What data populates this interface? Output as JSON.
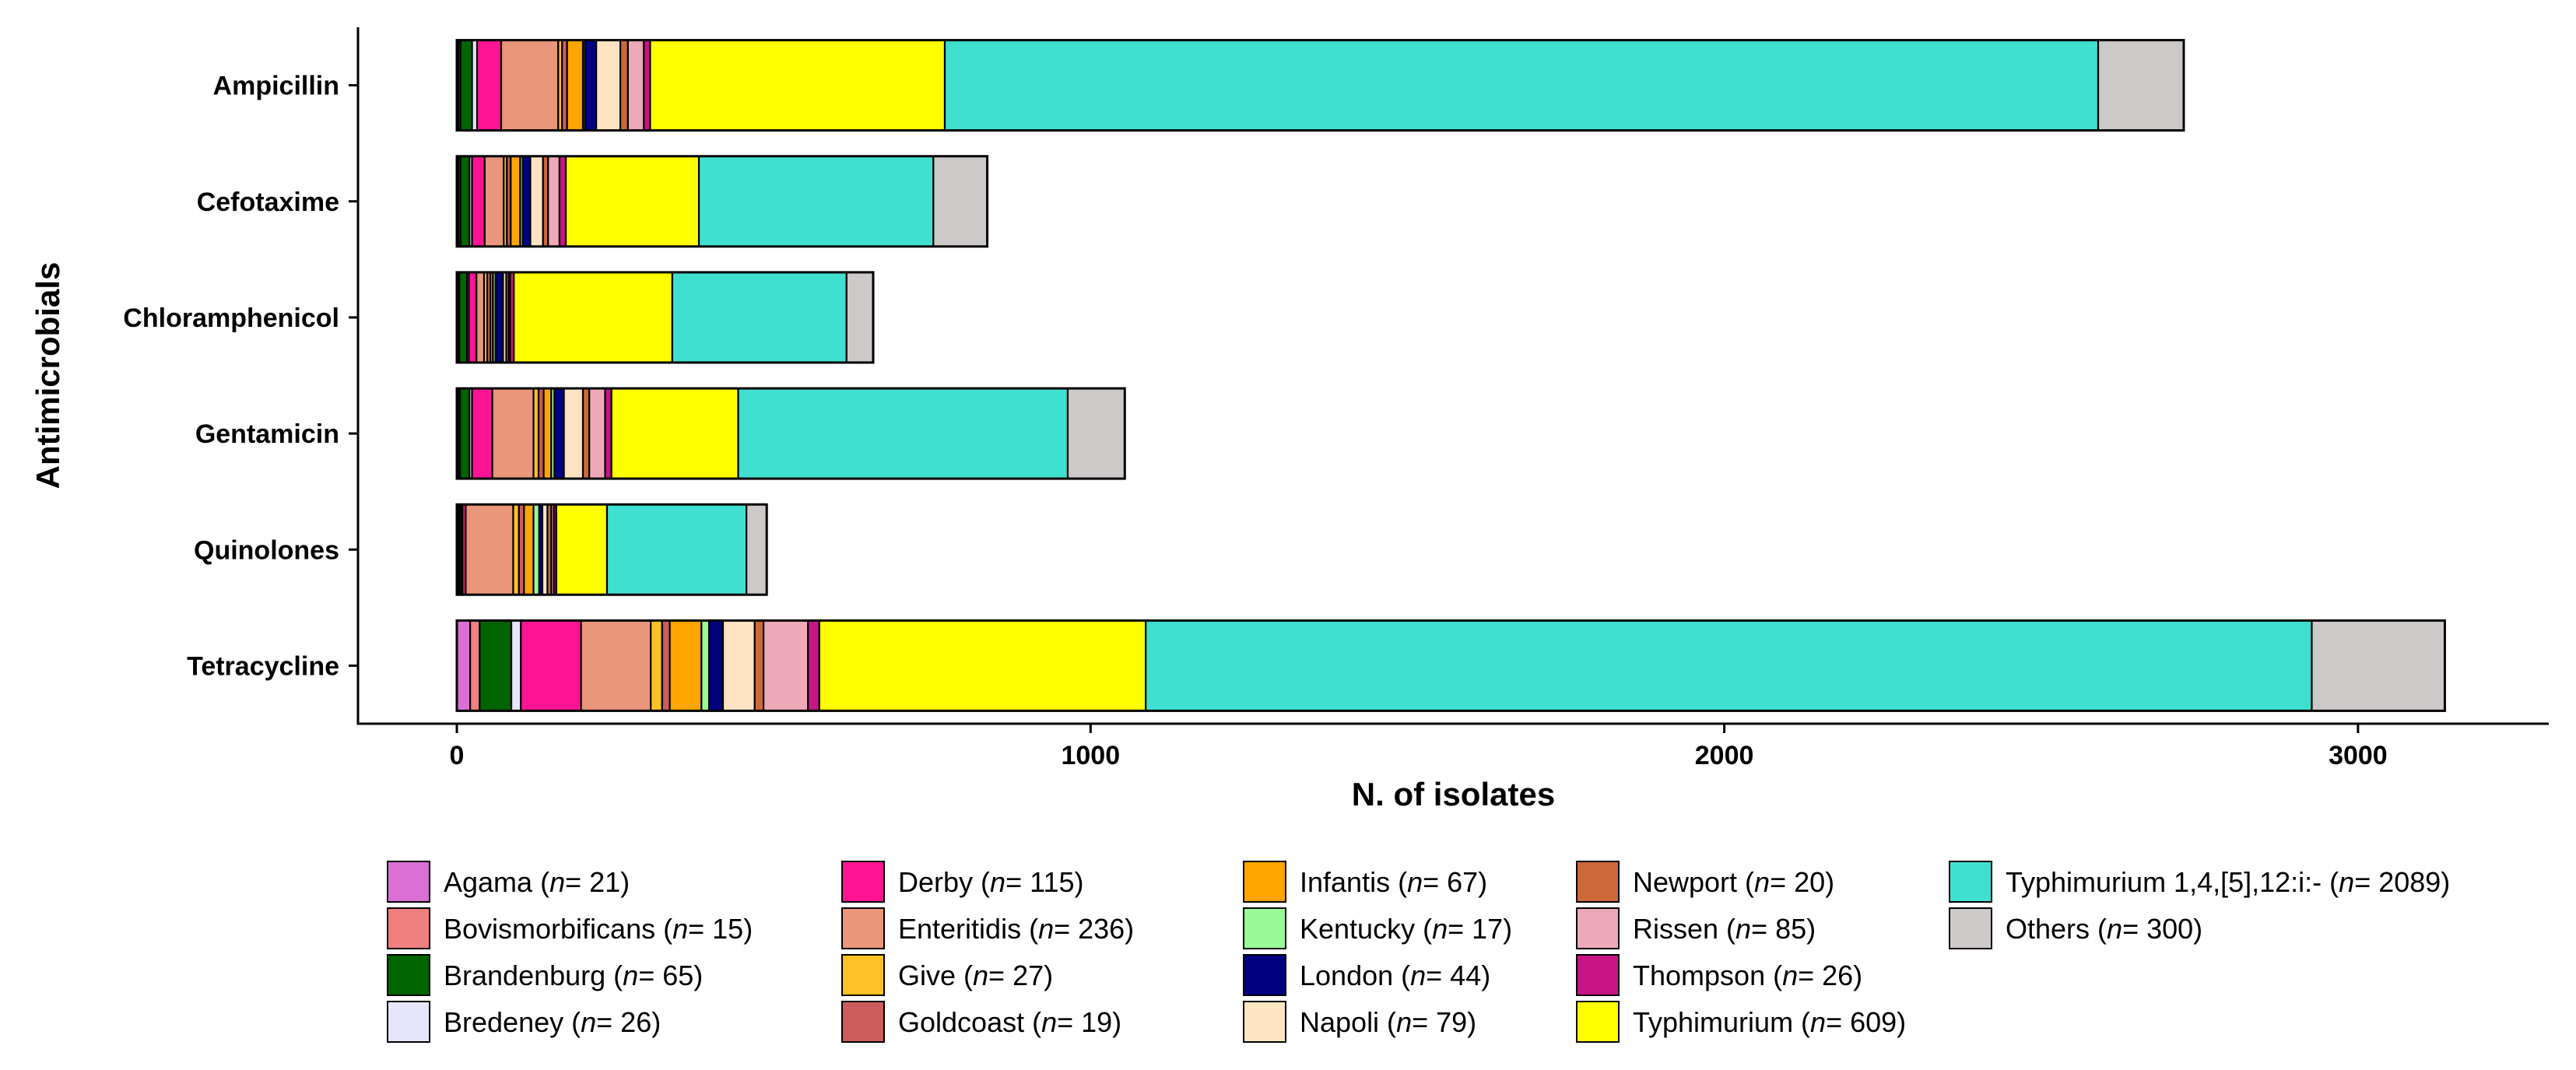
{
  "chart_data": {
    "type": "bar",
    "orientation": "horizontal",
    "stacked": true,
    "title": "",
    "xlabel": "N. of isolates",
    "ylabel": "Antimicrobials",
    "xlim": [
      -155,
      3340
    ],
    "xticks": [
      0,
      1000,
      2000,
      3000
    ],
    "xtick_labels": [
      "0",
      "1000",
      "2000",
      "3000"
    ],
    "categories": [
      "Ampicillin",
      "Cefotaxime",
      "Chloramphenicol",
      "Gentamicin",
      "Quinolones",
      "Tetracycline"
    ],
    "series": [
      {
        "name": "Agama",
        "n": "21",
        "color": "#DA70D6",
        "values": [
          3,
          3,
          2,
          3,
          2,
          21
        ]
      },
      {
        "name": "Bovismorbificans",
        "n": "15",
        "color": "#F08080",
        "values": [
          3,
          3,
          2,
          2,
          2,
          15
        ]
      },
      {
        "name": "Brandenburg",
        "n": "65",
        "color": "#006400",
        "values": [
          18,
          14,
          12,
          15,
          3,
          50
        ]
      },
      {
        "name": "Bredeney",
        "n": "26",
        "color": "#E6E6FA",
        "values": [
          8,
          4,
          3,
          4,
          2,
          15
        ]
      },
      {
        "name": "Derby",
        "n": "115",
        "color": "#FF1493",
        "values": [
          38,
          20,
          12,
          32,
          5,
          95
        ]
      },
      {
        "name": "Enteritidis",
        "n": "236",
        "color": "#E9967A",
        "values": [
          90,
          30,
          12,
          65,
          75,
          110
        ]
      },
      {
        "name": "Give",
        "n": "27",
        "color": "#FFC125",
        "values": [
          6,
          5,
          5,
          8,
          9,
          18
        ]
      },
      {
        "name": "Goldcoast",
        "n": "19",
        "color": "#CD5C5C",
        "values": [
          8,
          6,
          5,
          8,
          8,
          12
        ]
      },
      {
        "name": "Infantis",
        "n": "67",
        "color": "#FFA500",
        "values": [
          25,
          15,
          4,
          12,
          15,
          50
        ]
      },
      {
        "name": "Kentucky",
        "n": "17",
        "color": "#98FB98",
        "values": [
          3,
          4,
          4,
          5,
          9,
          12
        ]
      },
      {
        "name": "London",
        "n": "44",
        "color": "#000080",
        "values": [
          18,
          12,
          12,
          15,
          5,
          22
        ]
      },
      {
        "name": "Napoli",
        "n": "79",
        "color": "#FFE4C4",
        "values": [
          38,
          20,
          5,
          30,
          8,
          50
        ]
      },
      {
        "name": "Newport",
        "n": "20",
        "color": "#CD6839",
        "values": [
          12,
          8,
          4,
          10,
          6,
          14
        ]
      },
      {
        "name": "Rissen",
        "n": "85",
        "color": "#EEA9B8",
        "values": [
          25,
          18,
          2,
          25,
          4,
          70
        ]
      },
      {
        "name": "Thompson",
        "n": "26",
        "color": "#C71585",
        "values": [
          10,
          10,
          6,
          10,
          4,
          18
        ]
      },
      {
        "name": "Typhimurium",
        "n": "609",
        "color": "#FFFF00",
        "values": [
          465,
          210,
          250,
          200,
          80,
          515
        ]
      },
      {
        "name": "Typhimurium 1,4,[5],12:i:-",
        "n": "2089",
        "color": "#40E0D0",
        "values": [
          1820,
          370,
          275,
          520,
          220,
          1840
        ]
      },
      {
        "name": "Others",
        "n": "300",
        "color": "#CDC9C9",
        "values": [
          135,
          85,
          42,
          90,
          32,
          210
        ]
      }
    ],
    "legend_n_prefix": "n",
    "legend_n_sep": "= ",
    "legend_position": "bottom",
    "legend_columns": 5,
    "grid": false
  }
}
